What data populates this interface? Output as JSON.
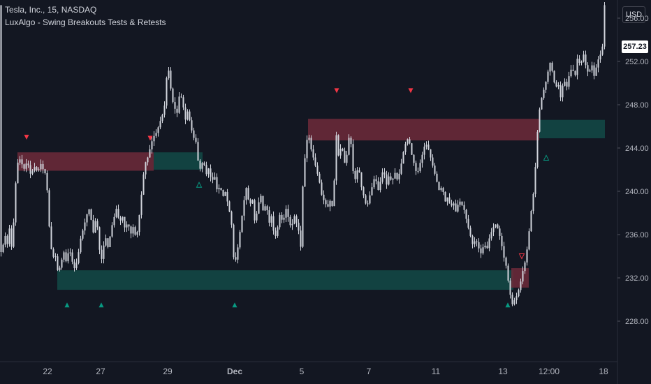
{
  "header": {
    "symbol_line": "Tesla, Inc., 15, NASDAQ",
    "indicator_line": "LuxAlgo - Swing Breakouts Tests & Retests"
  },
  "price_scale": {
    "currency": "USD",
    "last_price": "257.23"
  },
  "colors": {
    "background": "#131722",
    "candles": "#d1d4dc",
    "resistance_zone": "#6e2a39",
    "support_zone": "#134a46",
    "bear_marker": "#f23645",
    "bull_marker": "#089981"
  },
  "chart_data": {
    "type": "candlestick",
    "series_name": "TSLA",
    "ylim": [
      226,
      258
    ],
    "y_ticks": [
      228,
      232,
      236,
      240,
      244,
      248,
      252,
      256
    ],
    "y_tick_labels": [
      "228.00",
      "232.00",
      "236.00",
      "240.00",
      "244.00",
      "248.00",
      "252.00",
      "256.00"
    ],
    "x_ticks": [
      "22",
      "27",
      "29",
      "Dec",
      "5",
      "7",
      "11",
      "13",
      "12:00",
      "18"
    ],
    "price_path": [
      [
        0,
        234.2
      ],
      [
        4,
        234.5
      ],
      [
        8,
        236.0
      ],
      [
        12,
        235.0
      ],
      [
        16,
        237.5
      ],
      [
        18,
        234.0
      ],
      [
        22,
        239.0
      ],
      [
        25,
        242.5
      ],
      [
        30,
        243.0
      ],
      [
        35,
        242.0
      ],
      [
        40,
        242.8
      ],
      [
        45,
        241.5
      ],
      [
        50,
        242.3
      ],
      [
        55,
        241.8
      ],
      [
        60,
        242.6
      ],
      [
        65,
        241.5
      ],
      [
        67,
        242.2
      ],
      [
        70,
        238.0
      ],
      [
        73,
        235.5
      ],
      [
        76,
        233.8
      ],
      [
        80,
        234.2
      ],
      [
        84,
        232.5
      ],
      [
        88,
        233.2
      ],
      [
        92,
        234.5
      ],
      [
        96,
        233.4
      ],
      [
        100,
        234.8
      ],
      [
        104,
        233.6
      ],
      [
        108,
        232.8
      ],
      [
        112,
        233.7
      ],
      [
        116,
        235.5
      ],
      [
        120,
        236.5
      ],
      [
        124,
        237.5
      ],
      [
        128,
        238.5
      ],
      [
        132,
        237.2
      ],
      [
        135,
        236.0
      ],
      [
        138,
        237.5
      ],
      [
        142,
        236.2
      ],
      [
        145,
        233.0
      ],
      [
        148,
        234.5
      ],
      [
        152,
        235.8
      ],
      [
        156,
        234.7
      ],
      [
        160,
        236.5
      ],
      [
        164,
        237.5
      ],
      [
        168,
        238.5
      ],
      [
        172,
        237.0
      ],
      [
        176,
        237.8
      ],
      [
        180,
        236.5
      ],
      [
        184,
        237.2
      ],
      [
        188,
        236.0
      ],
      [
        192,
        236.8
      ],
      [
        196,
        235.5
      ],
      [
        200,
        237.5
      ],
      [
        204,
        240.0
      ],
      [
        208,
        242.5
      ],
      [
        212,
        243.0
      ],
      [
        216,
        244.0
      ],
      [
        220,
        245.0
      ],
      [
        224,
        245.3
      ],
      [
        228,
        246.0
      ],
      [
        232,
        246.8
      ],
      [
        236,
        247.5
      ],
      [
        239,
        250.0
      ],
      [
        241,
        251.8
      ],
      [
        244,
        250.5
      ],
      [
        247,
        248.5
      ],
      [
        250,
        248.0
      ],
      [
        254,
        247.0
      ],
      [
        258,
        249.0
      ],
      [
        262,
        248.5
      ],
      [
        266,
        246.5
      ],
      [
        270,
        247.5
      ],
      [
        274,
        246.0
      ],
      [
        278,
        245.0
      ],
      [
        282,
        244.5
      ],
      [
        285,
        242.5
      ],
      [
        288,
        242.0
      ],
      [
        292,
        243.0
      ],
      [
        296,
        241.5
      ],
      [
        300,
        242.2
      ],
      [
        304,
        240.8
      ],
      [
        308,
        241.5
      ],
      [
        312,
        240.0
      ],
      [
        316,
        240.5
      ],
      [
        320,
        239.5
      ],
      [
        324,
        240.0
      ],
      [
        328,
        238.5
      ],
      [
        332,
        237.5
      ],
      [
        335,
        234.0
      ],
      [
        338,
        233.5
      ],
      [
        342,
        235.0
      ],
      [
        346,
        237.0
      ],
      [
        350,
        239.0
      ],
      [
        354,
        240.5
      ],
      [
        358,
        238.5
      ],
      [
        362,
        239.5
      ],
      [
        366,
        237.0
      ],
      [
        370,
        238.5
      ],
      [
        374,
        239.8
      ],
      [
        378,
        238.0
      ],
      [
        382,
        239.0
      ],
      [
        386,
        237.0
      ],
      [
        390,
        237.8
      ],
      [
        394,
        235.5
      ],
      [
        398,
        236.5
      ],
      [
        402,
        238.0
      ],
      [
        406,
        237.0
      ],
      [
        410,
        238.5
      ],
      [
        414,
        237.5
      ],
      [
        418,
        236.5
      ],
      [
        422,
        237.8
      ],
      [
        426,
        237.0
      ],
      [
        430,
        236.0
      ],
      [
        432,
        234.5
      ],
      [
        434,
        240.0
      ],
      [
        438,
        243.5
      ],
      [
        442,
        245.5
      ],
      [
        446,
        244.0
      ],
      [
        450,
        243.0
      ],
      [
        454,
        242.0
      ],
      [
        458,
        241.0
      ],
      [
        462,
        239.5
      ],
      [
        466,
        239.0
      ],
      [
        470,
        238.5
      ],
      [
        474,
        239.2
      ],
      [
        478,
        238.3
      ],
      [
        482,
        245.5
      ],
      [
        486,
        243.0
      ],
      [
        490,
        244.5
      ],
      [
        494,
        242.5
      ],
      [
        498,
        243.5
      ],
      [
        502,
        245.8
      ],
      [
        506,
        242.0
      ],
      [
        510,
        241.0
      ],
      [
        514,
        242.5
      ],
      [
        518,
        240.5
      ],
      [
        522,
        239.5
      ],
      [
        526,
        238.5
      ],
      [
        530,
        239.5
      ],
      [
        534,
        240.5
      ],
      [
        538,
        241.5
      ],
      [
        542,
        240.0
      ],
      [
        546,
        241.0
      ],
      [
        550,
        242.2
      ],
      [
        554,
        240.5
      ],
      [
        558,
        241.5
      ],
      [
        562,
        240.8
      ],
      [
        566,
        241.8
      ],
      [
        570,
        241.0
      ],
      [
        574,
        242.0
      ],
      [
        578,
        243.5
      ],
      [
        582,
        244.5
      ],
      [
        586,
        245.0
      ],
      [
        590,
        243.5
      ],
      [
        594,
        242.5
      ],
      [
        598,
        241.5
      ],
      [
        602,
        242.5
      ],
      [
        606,
        243.5
      ],
      [
        610,
        244.5
      ],
      [
        614,
        244.0
      ],
      [
        618,
        243.0
      ],
      [
        622,
        242.0
      ],
      [
        626,
        241.0
      ],
      [
        630,
        240.0
      ],
      [
        634,
        240.5
      ],
      [
        638,
        239.0
      ],
      [
        642,
        239.5
      ],
      [
        646,
        238.5
      ],
      [
        650,
        239.0
      ],
      [
        654,
        238.0
      ],
      [
        658,
        239.2
      ],
      [
        662,
        238.8
      ],
      [
        666,
        238.2
      ],
      [
        670,
        237.0
      ],
      [
        674,
        236.0
      ],
      [
        678,
        235.0
      ],
      [
        682,
        235.6
      ],
      [
        686,
        234.8
      ],
      [
        690,
        234.2
      ],
      [
        694,
        235.2
      ],
      [
        698,
        234.6
      ],
      [
        702,
        235.8
      ],
      [
        706,
        236.5
      ],
      [
        710,
        237.0
      ],
      [
        714,
        236.5
      ],
      [
        718,
        235.5
      ],
      [
        722,
        234.0
      ],
      [
        726,
        233.0
      ],
      [
        730,
        231.0
      ],
      [
        734,
        229.5
      ],
      [
        738,
        230.0
      ],
      [
        742,
        230.5
      ],
      [
        746,
        231.5
      ],
      [
        750,
        232.8
      ],
      [
        754,
        233.8
      ],
      [
        758,
        236.0
      ],
      [
        762,
        238.5
      ],
      [
        766,
        240.5
      ],
      [
        769,
        244.0
      ],
      [
        772,
        247.0
      ],
      [
        776,
        248.5
      ],
      [
        780,
        249.5
      ],
      [
        784,
        250.5
      ],
      [
        788,
        252.0
      ],
      [
        792,
        251.0
      ],
      [
        796,
        249.5
      ],
      [
        800,
        250.0
      ],
      [
        804,
        248.5
      ],
      [
        808,
        250.5
      ],
      [
        812,
        249.5
      ],
      [
        816,
        250.8
      ],
      [
        820,
        251.5
      ],
      [
        824,
        250.5
      ],
      [
        828,
        252.5
      ],
      [
        832,
        251.5
      ],
      [
        836,
        252.8
      ],
      [
        840,
        251.5
      ],
      [
        844,
        250.8
      ],
      [
        848,
        251.8
      ],
      [
        852,
        250.5
      ],
      [
        856,
        252.0
      ],
      [
        860,
        252.5
      ],
      [
        864,
        253.5
      ],
      [
        866,
        257.2
      ]
    ],
    "zones": [
      {
        "kind": "resistance",
        "x_start": 25,
        "x_end": 220,
        "y_low": 241.9,
        "y_high": 243.6
      },
      {
        "kind": "support",
        "x_start": 220,
        "x_end": 290,
        "y_low": 242.0,
        "y_high": 243.6
      },
      {
        "kind": "support",
        "x_start": 82,
        "x_end": 735,
        "y_low": 230.9,
        "y_high": 232.7
      },
      {
        "kind": "resistance",
        "x_start": 732,
        "x_end": 757,
        "y_low": 231.1,
        "y_high": 232.9
      },
      {
        "kind": "resistance",
        "x_start": 441,
        "x_end": 772,
        "y_low": 244.7,
        "y_high": 246.7
      },
      {
        "kind": "support",
        "x_start": 772,
        "x_end": 866,
        "y_low": 244.9,
        "y_high": 246.6
      }
    ],
    "markers": [
      {
        "x": 38,
        "y": 245.0,
        "shape": "down",
        "filled": true,
        "kind": "bear"
      },
      {
        "x": 215,
        "y": 244.9,
        "shape": "down",
        "filled": true,
        "kind": "bear"
      },
      {
        "x": 482,
        "y": 249.3,
        "shape": "down",
        "filled": true,
        "kind": "bear"
      },
      {
        "x": 588,
        "y": 249.3,
        "shape": "down",
        "filled": true,
        "kind": "bear"
      },
      {
        "x": 747,
        "y": 234.0,
        "shape": "down",
        "filled": false,
        "kind": "bear"
      },
      {
        "x": 96,
        "y": 229.5,
        "shape": "up",
        "filled": true,
        "kind": "bull"
      },
      {
        "x": 145,
        "y": 229.5,
        "shape": "up",
        "filled": true,
        "kind": "bull"
      },
      {
        "x": 336,
        "y": 229.5,
        "shape": "up",
        "filled": true,
        "kind": "bull"
      },
      {
        "x": 727,
        "y": 229.5,
        "shape": "up",
        "filled": true,
        "kind": "bull"
      },
      {
        "x": 285,
        "y": 240.6,
        "shape": "up",
        "filled": false,
        "kind": "bull"
      },
      {
        "x": 782,
        "y": 243.1,
        "shape": "up",
        "filled": false,
        "kind": "bull"
      }
    ]
  }
}
